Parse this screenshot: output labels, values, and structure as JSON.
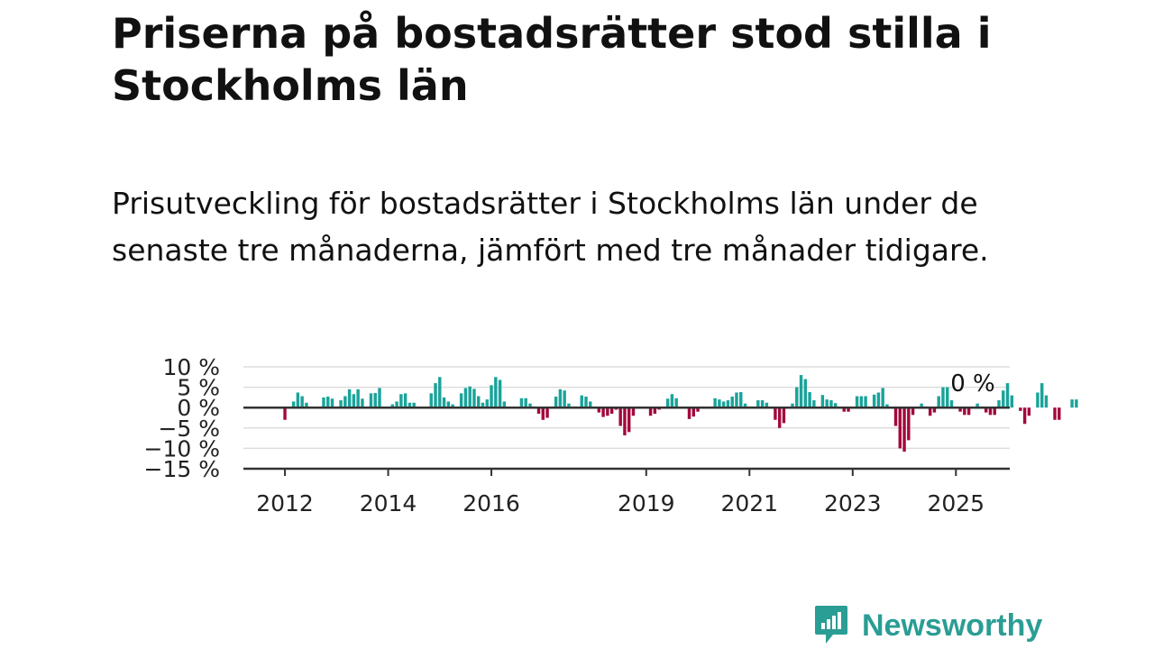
{
  "header": {
    "title": "Priserna på bostadsrätter stod stilla i Stockholms län",
    "subtitle": "Prisutveckling för bostadsrätter i Stockholms län under de senaste tre månaderna, jämfört med tre månader tidigare."
  },
  "chart_data": {
    "type": "bar",
    "title": "Priserna på bostadsrätter stod stilla i Stockholms län",
    "subtitle": "Prisutveckling för bostadsrätter i Stockholms län under de senaste tre månaderna, jämfört med tre månader tidigare.",
    "xlabel": "",
    "ylabel": "",
    "x_start": "2011-11",
    "x_ticks": [
      {
        "year": 2012,
        "label": "2012"
      },
      {
        "year": 2014,
        "label": "2014"
      },
      {
        "year": 2016,
        "label": "2016"
      },
      {
        "year": 2019,
        "label": "2019"
      },
      {
        "year": 2021,
        "label": "2021"
      },
      {
        "year": 2023,
        "label": "2023"
      },
      {
        "year": 2025,
        "label": "2025"
      }
    ],
    "y_ticks": [
      {
        "value": 10,
        "label": "10 %"
      },
      {
        "value": 5,
        "label": "5 %"
      },
      {
        "value": 0,
        "label": "0 %"
      },
      {
        "value": -5,
        "label": "−5 %"
      },
      {
        "value": -10,
        "label": "−10 %"
      },
      {
        "value": -15,
        "label": "−15 %"
      }
    ],
    "ylim": [
      -15,
      10
    ],
    "grid": true,
    "positive_color": "#1aa39a",
    "negative_color": "#a3093c",
    "annotation": {
      "text": "0 %"
    },
    "values": [
      0,
      0,
      -3,
      0,
      1.5,
      3.7,
      2.8,
      1.2,
      0,
      0,
      0,
      2.5,
      2.7,
      2.2,
      0,
      1.8,
      2.8,
      4.5,
      3.3,
      4.5,
      2.2,
      0,
      3.5,
      3.6,
      4.8,
      0,
      0,
      0.8,
      1.5,
      3.3,
      3.5,
      1.2,
      1.2,
      0,
      0,
      0,
      3.5,
      6,
      7.5,
      2.5,
      1.5,
      0.8,
      0,
      3.5,
      4.8,
      5.2,
      4.6,
      2.8,
      1.2,
      2,
      5.5,
      7.5,
      6.8,
      1.5,
      0,
      0,
      0,
      2.3,
      2.3,
      1,
      0,
      -1.5,
      -3,
      -2.5,
      0,
      2.7,
      4.5,
      4.2,
      1,
      0,
      0,
      3,
      2.7,
      1.5,
      0,
      -1.2,
      -2.3,
      -2,
      -1.5,
      -0.5,
      -4.5,
      -6.8,
      -6,
      -2,
      0,
      0,
      0,
      -2,
      -1.5,
      -0.5,
      0,
      2.2,
      3.3,
      2.3,
      0,
      0,
      -2.8,
      -2.2,
      -1,
      0,
      0,
      0,
      2.3,
      2,
      1.5,
      1.8,
      2.7,
      3.7,
      3.8,
      1,
      0,
      0,
      1.8,
      1.8,
      1.2,
      0,
      -3,
      -5,
      -3.8,
      0,
      1,
      5,
      8,
      7,
      3.8,
      1.8,
      0,
      3.1,
      2,
      1.8,
      1.1,
      0,
      -1,
      -1,
      0,
      2.8,
      2.8,
      2.8,
      0,
      3.2,
      3.7,
      4.8,
      0.8,
      0,
      -4.5,
      -10,
      -10.8,
      -8,
      -1.8,
      0,
      1,
      0,
      -2,
      -1.2,
      2.8,
      5,
      5,
      1.8,
      0,
      -1,
      -1.8,
      -1.8,
      0,
      1,
      0,
      -1.2,
      -1.8,
      -1.8,
      1.8,
      4.2,
      6,
      3,
      0,
      -0.8,
      -4,
      -2,
      0,
      3.7,
      6,
      3,
      0,
      -3,
      -3,
      0,
      0,
      2,
      2,
      0
    ]
  }
}
